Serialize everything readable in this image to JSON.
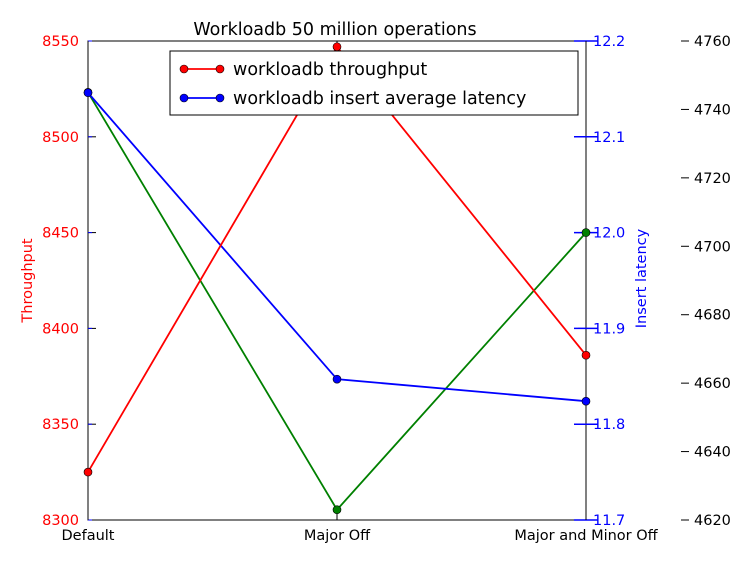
{
  "chart_data": {
    "type": "line",
    "title": "Workloadb 50 million operations",
    "categories": [
      "Default",
      "Major Off",
      "Major and Minor Off"
    ],
    "axes": {
      "left": {
        "label": "Throughput",
        "color": "#ff0000",
        "ylim": [
          8300,
          8550
        ],
        "ticks": [
          8300,
          8350,
          8400,
          8450,
          8500,
          8550
        ]
      },
      "right": {
        "label": "Insert latency",
        "color": "#0000ff",
        "ylim": [
          11.7,
          12.2
        ],
        "ticks": [
          "11.7",
          "11.8",
          "11.9",
          "12.0",
          "12.1",
          "12.2"
        ]
      },
      "far_right": {
        "label": "",
        "color": "#000000",
        "ylim": [
          4620,
          4760
        ],
        "ticks": [
          4620,
          4640,
          4660,
          4680,
          4700,
          4720,
          4740,
          4760
        ]
      }
    },
    "series": [
      {
        "name": "workloadb throughput",
        "axis": "left",
        "color": "#ff0000",
        "values": [
          8325,
          8547,
          8386
        ]
      },
      {
        "name": "workloadb insert average latency",
        "axis": "right",
        "color": "#0000ff",
        "values": [
          12.146,
          11.847,
          11.824
        ]
      },
      {
        "name": "",
        "axis": "far_right",
        "color": "#008000",
        "values": [
          4745,
          4623,
          4704
        ]
      }
    ],
    "legend": {
      "placement": "upper-center"
    },
    "grid": false
  }
}
